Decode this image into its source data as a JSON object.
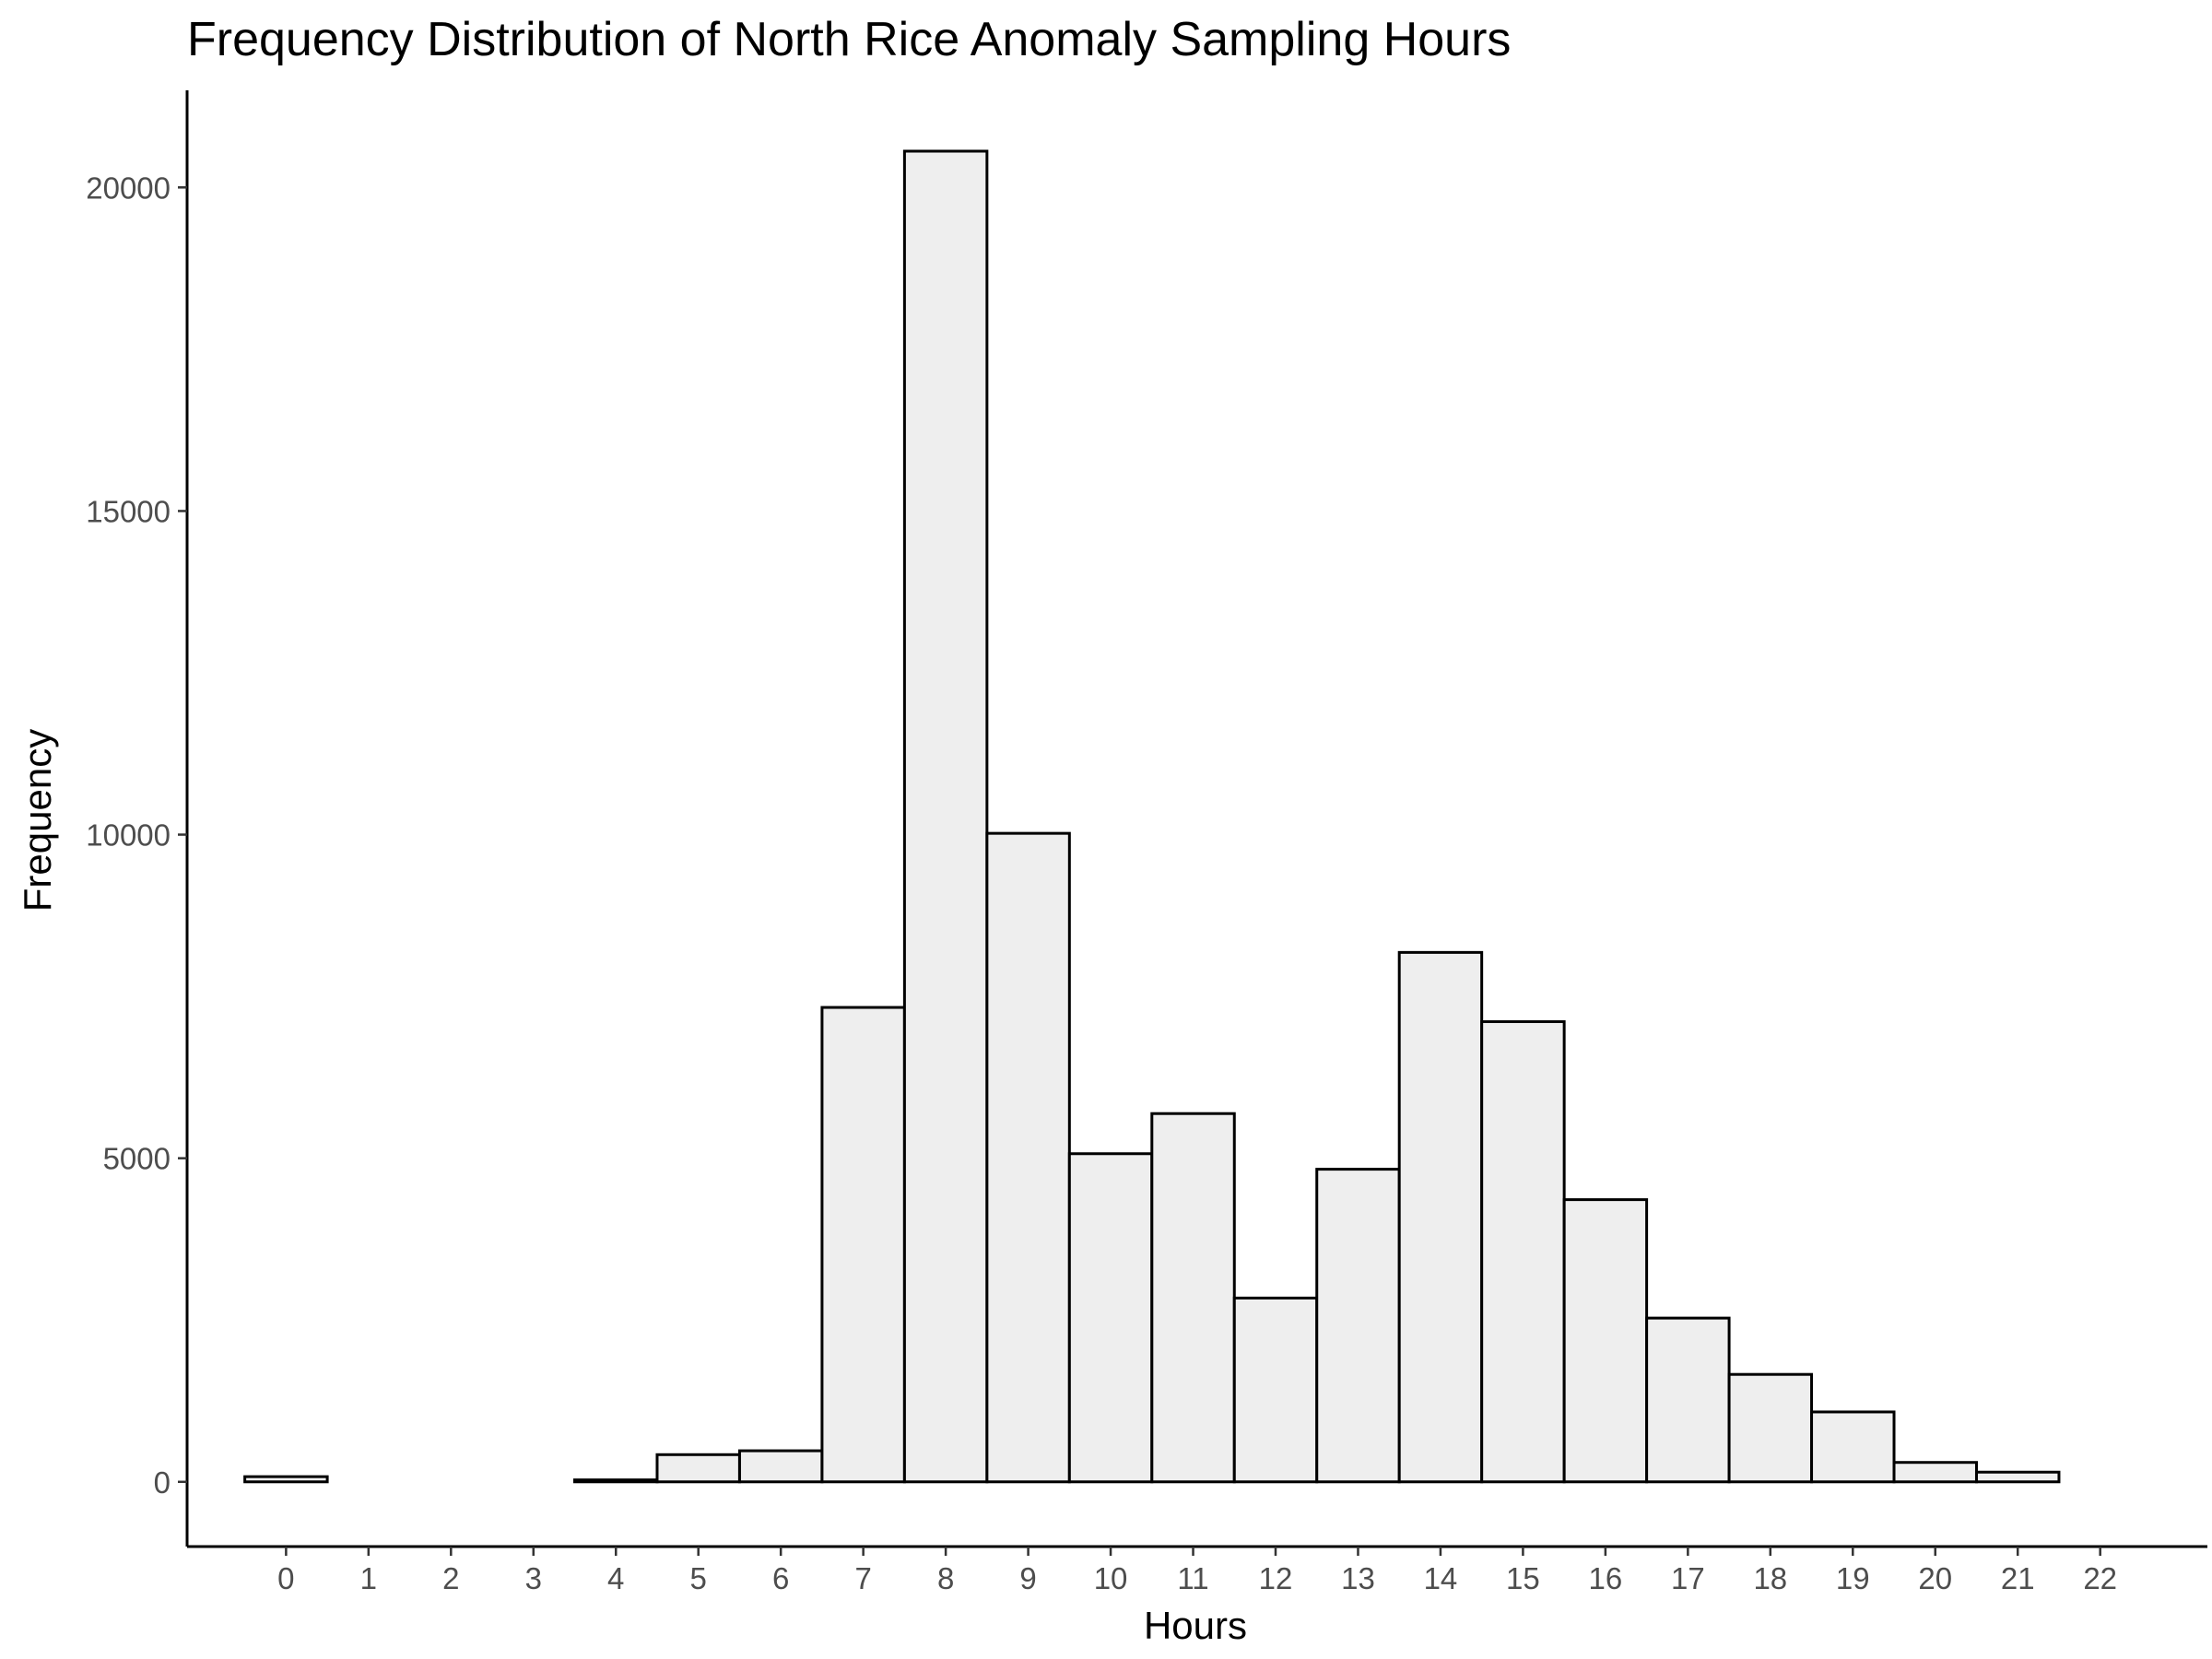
{
  "chart_data": {
    "type": "bar",
    "title": "Frequency Distribution of North Rice Anomaly Sampling Hours",
    "xlabel": "Hours",
    "ylabel": "Frequency",
    "categories": [
      "0",
      "1",
      "2",
      "3",
      "4",
      "5",
      "6",
      "7",
      "8",
      "9",
      "10",
      "11",
      "12",
      "13",
      "14",
      "15",
      "16",
      "17",
      "18",
      "19",
      "20",
      "21",
      "22"
    ],
    "values": [
      80,
      0,
      0,
      0,
      30,
      420,
      480,
      7330,
      20560,
      10020,
      5070,
      5690,
      2840,
      4830,
      8180,
      7110,
      4360,
      2530,
      1660,
      1080,
      300,
      150,
      0
    ],
    "y_ticks": [
      0,
      5000,
      10000,
      15000,
      20000
    ],
    "y_tick_labels": [
      "0",
      "5000",
      "10000",
      "15000",
      "20000"
    ],
    "ylim": [
      -1000,
      21500
    ],
    "xlim": [
      -1.2,
      23.3
    ],
    "grid": false,
    "legend": "none",
    "colors": {
      "bar_fill": "#eeeeee",
      "bar_outline": "#000000",
      "axis": "#000000",
      "tick_text": "#4d4d4d"
    }
  }
}
